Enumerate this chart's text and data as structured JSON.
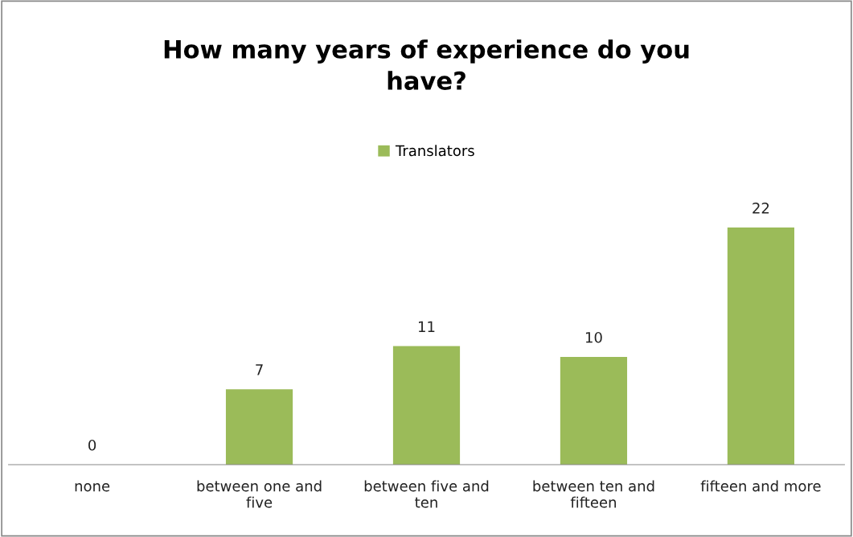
{
  "chart_data": {
    "type": "bar",
    "title": "How many years of experience do you\nhave?",
    "categories": [
      "none",
      "between one and\nfive",
      "between five and\nten",
      "between ten and\nfifteen",
      "fifteen and more"
    ],
    "series": [
      {
        "name": "Translators",
        "color": "#9bbb59",
        "values": [
          0,
          7,
          11,
          10,
          22
        ]
      }
    ],
    "data_labels": true,
    "legend": "top"
  }
}
